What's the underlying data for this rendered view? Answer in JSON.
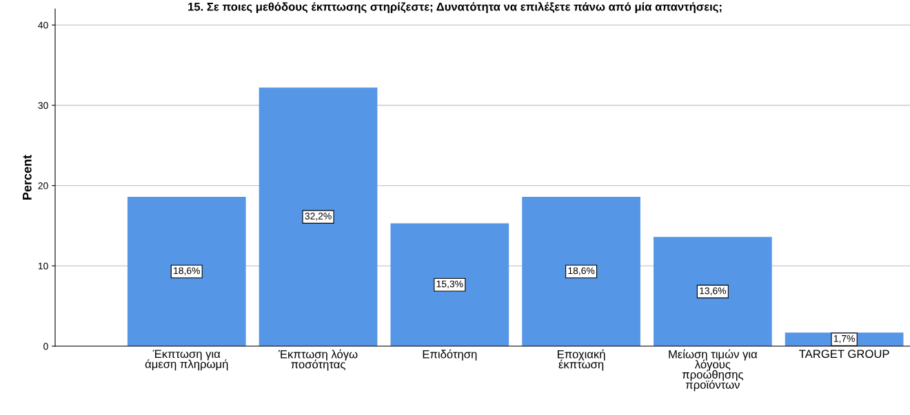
{
  "chart_data": {
    "type": "bar",
    "title": "15. Σε ποιες μεθόδους έκπτωσης στηρίζεστε; Δυνατότητα να επιλέξετε πάνω από μία απαντήσεις;",
    "ylabel": "Percent",
    "categories": [
      "Έκπτωση για\nάμεση πληρωμή",
      "Έκπτωση λόγω\nποσότητας",
      "Επιδότηση",
      "Εποχιακή\nέκπτωση",
      "Μείωση τιμών για\nλόγους\nπροώθησης\nπροϊόντων",
      "TARGET GROUP"
    ],
    "values": [
      18.6,
      32.2,
      15.3,
      18.6,
      13.6,
      1.7
    ],
    "value_labels": [
      "18,6%",
      "32,2%",
      "15,3%",
      "18,6%",
      "13,6%",
      "1,7%"
    ],
    "color": "#5596e6",
    "ylim": [
      0,
      42
    ],
    "yticks": [
      0,
      10,
      20,
      30,
      40
    ],
    "grid": "y"
  }
}
